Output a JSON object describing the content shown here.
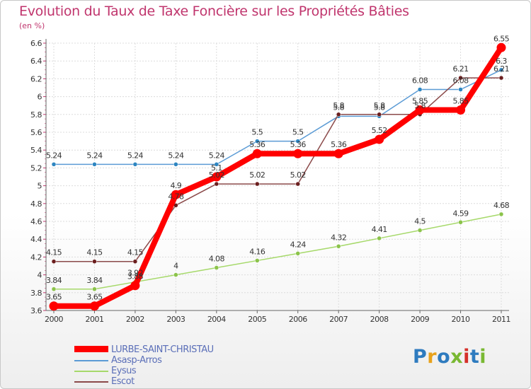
{
  "title": "Evolution du Taux de Taxe Foncière sur les Propriétés Bâties",
  "subtitle": "(en %)",
  "logo": {
    "text": "Proxiti",
    "colors": [
      "#2e7bbf",
      "#e8a21c",
      "#2e7bbf",
      "#79b832",
      "#d5302a",
      "#2e7bbf",
      "#79b832"
    ]
  },
  "chart_data": {
    "type": "line",
    "x": [
      "2000",
      "2001",
      "2002",
      "2003",
      "2004",
      "2005",
      "2006",
      "2007",
      "2008",
      "2009",
      "2010",
      "2011"
    ],
    "ylim": [
      3.6,
      6.6
    ],
    "yticks": [
      "3.6",
      "3.8",
      "4",
      "4.2",
      "4.4",
      "4.6",
      "4.8",
      "5",
      "5.2",
      "5.4",
      "5.6",
      "5.8",
      "6",
      "6.2",
      "6.4",
      "6.6"
    ],
    "grid": true,
    "legend_position": "bottom-left",
    "series": [
      {
        "name": "Asasp-Arros",
        "color": "#5b9bd5",
        "marker": "#2e86c1",
        "values": [
          5.24,
          5.24,
          5.24,
          5.24,
          5.24,
          5.5,
          5.5,
          5.78,
          5.78,
          6.08,
          6.08,
          6.3
        ],
        "labels": [
          "5.24",
          "5.24",
          "5.24",
          "5.24",
          "5.24",
          "5.5",
          "5.5",
          "5.8",
          "5.8",
          "6.08",
          "6.08",
          "6.3"
        ]
      },
      {
        "name": "Eysus",
        "color": "#a6d96a",
        "marker": "#8bc34a",
        "values": [
          3.84,
          3.84,
          3.92,
          4.0,
          4.08,
          4.16,
          4.24,
          4.32,
          4.41,
          4.5,
          4.59,
          4.68
        ],
        "labels": [
          "3.84",
          "3.84",
          "3.92",
          "4",
          "4.08",
          "4.16",
          "4.24",
          "4.32",
          "4.41",
          "4.5",
          "4.59",
          "4.68"
        ]
      },
      {
        "name": "Escot",
        "color": "#8b4a4a",
        "marker": "#6b1e1e",
        "values": [
          4.15,
          4.15,
          4.15,
          4.78,
          5.02,
          5.02,
          5.02,
          5.8,
          5.8,
          5.8,
          6.21,
          6.21
        ],
        "labels": [
          "4.15",
          "4.15",
          "4.15",
          "4.78",
          "5.02",
          "5.02",
          "5.02",
          "5.8",
          "5.8",
          "5.8",
          "6.21",
          "6.21"
        ]
      },
      {
        "name": "LURBE-SAINT-CHRISTAU",
        "color": "#ff0000",
        "marker": "#ff0000",
        "values": [
          3.65,
          3.65,
          3.88,
          4.9,
          5.1,
          5.36,
          5.36,
          5.36,
          5.52,
          5.85,
          5.85,
          6.55
        ],
        "labels": [
          "3.65",
          "3.65",
          "3.88",
          "4.9",
          "5.1",
          "5.36",
          "5.36",
          "5.36",
          "5.52",
          "5.85",
          "5.85",
          "6.55"
        ]
      }
    ],
    "legend_order": [
      "LURBE-SAINT-CHRISTAU",
      "Asasp-Arros",
      "Eysus",
      "Escot"
    ]
  }
}
